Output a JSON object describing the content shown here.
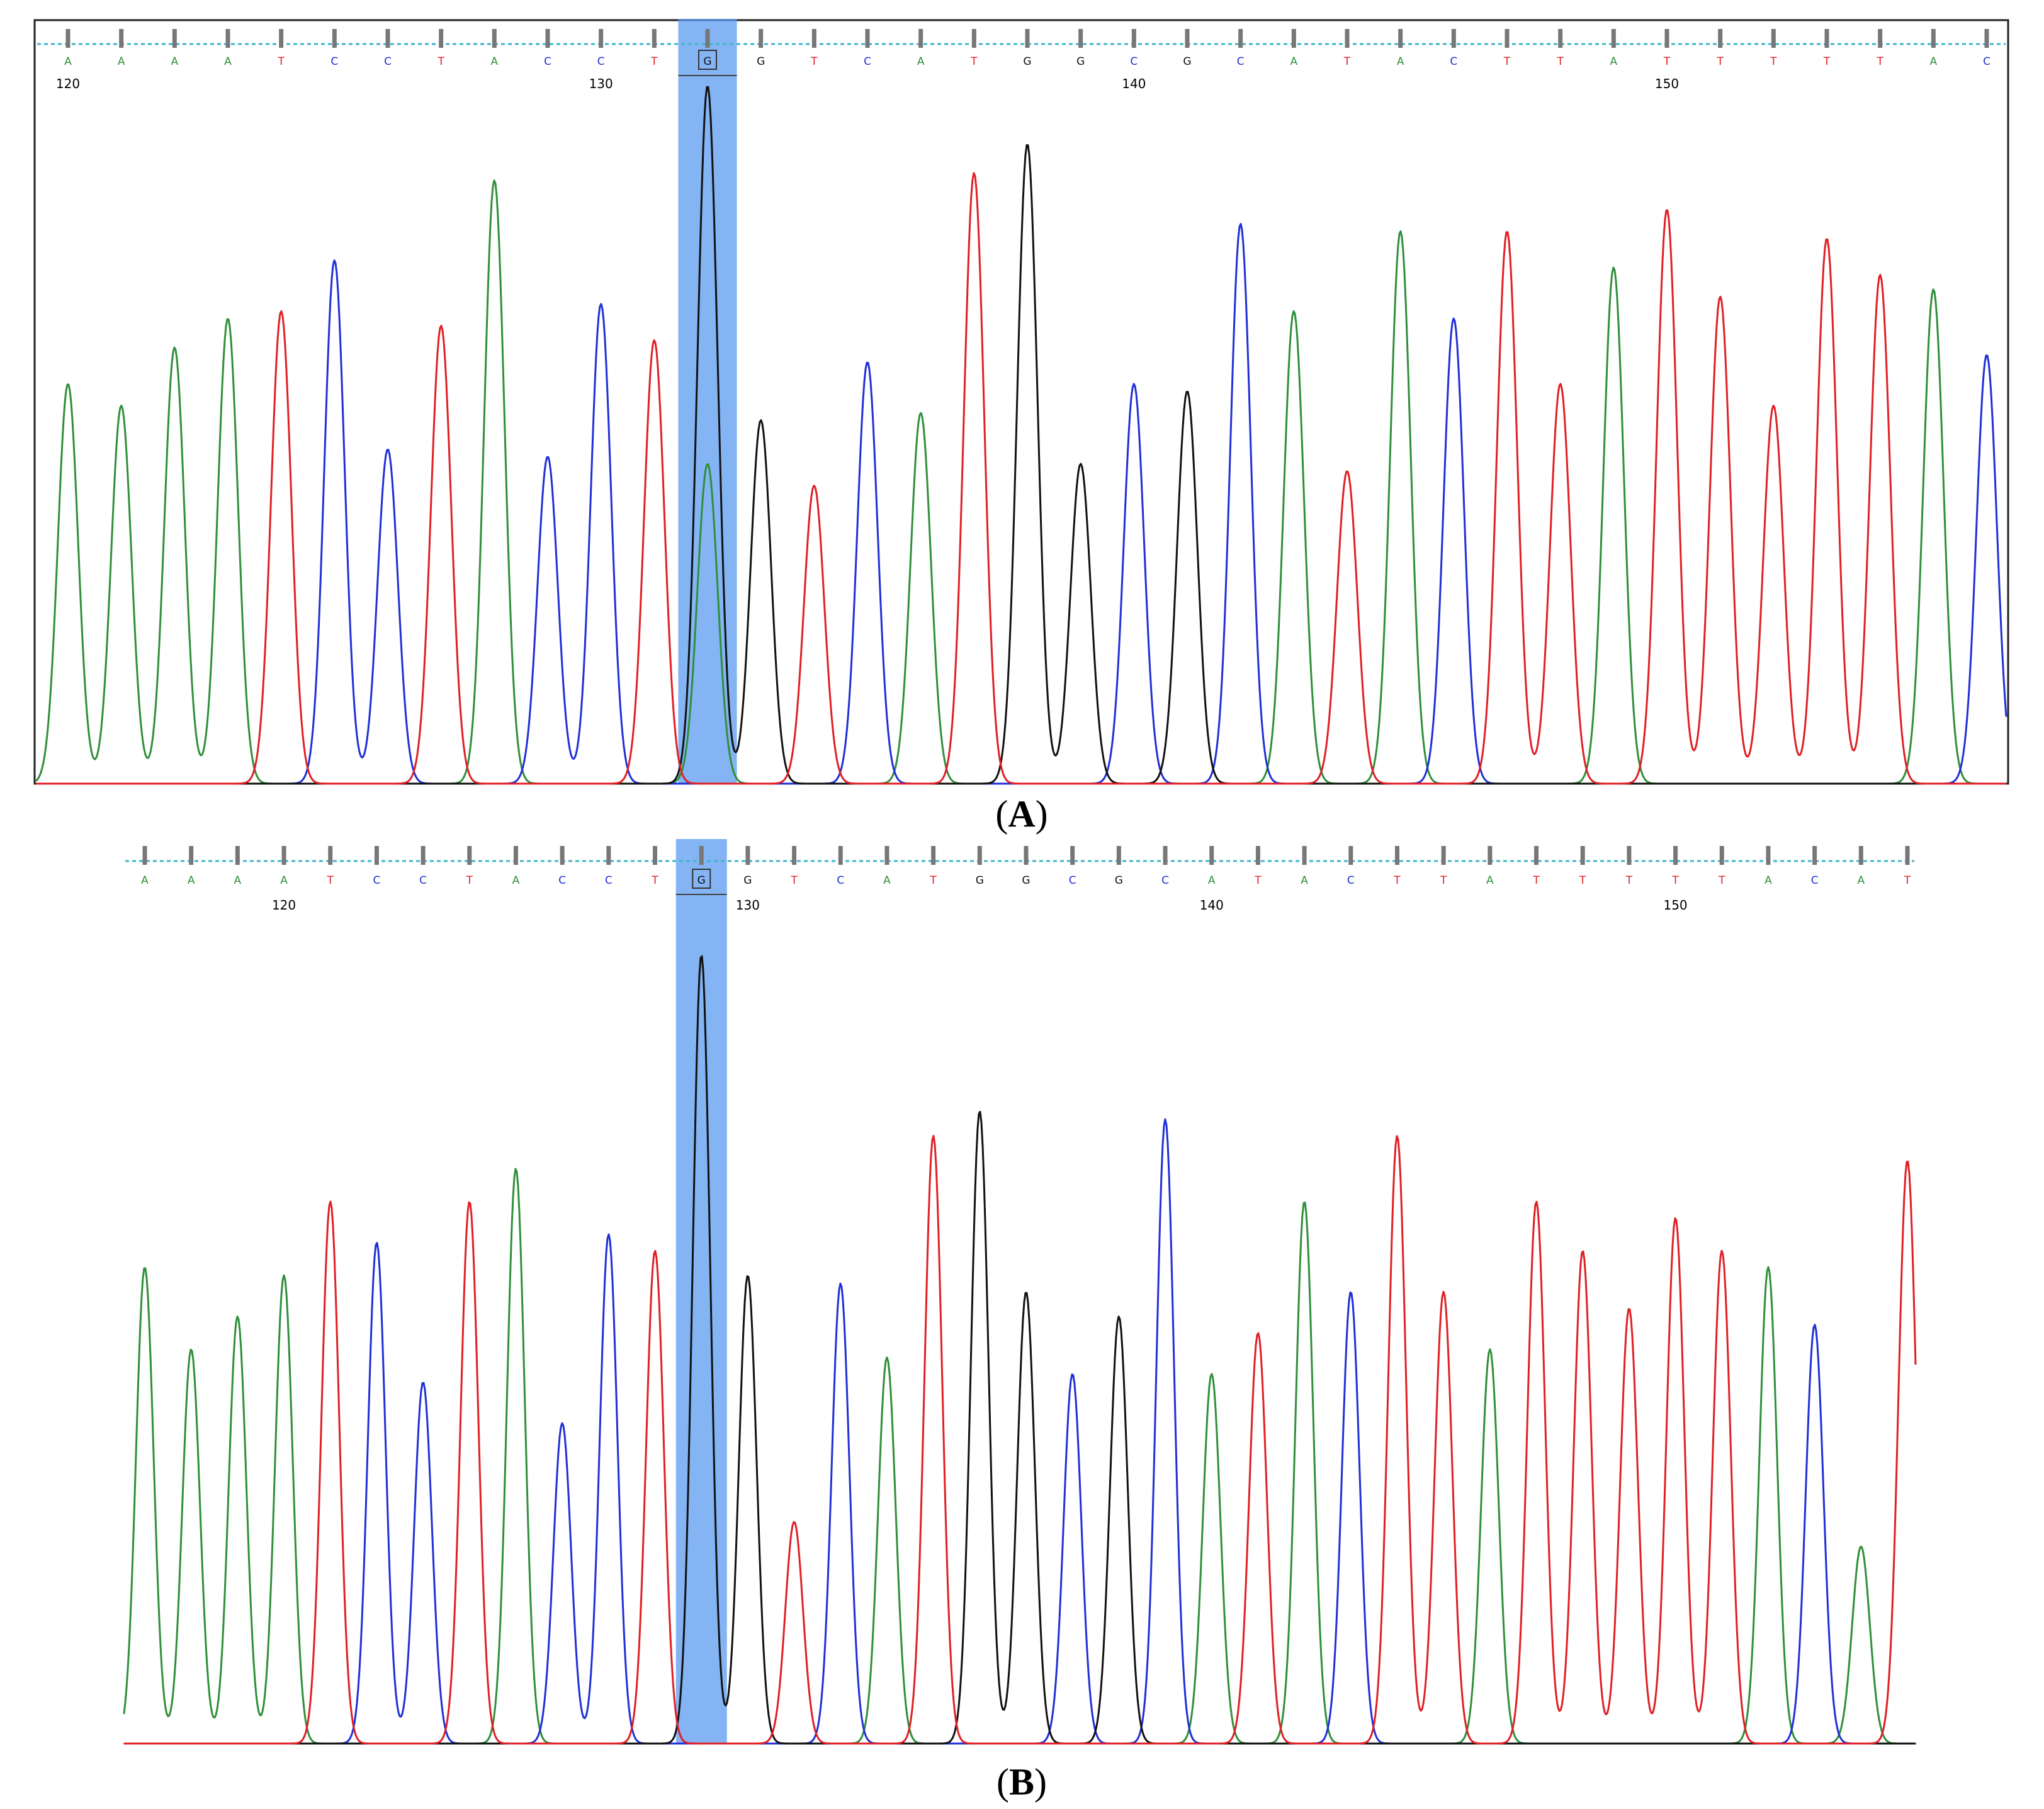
{
  "colors": {
    "A": "#2f8f3a",
    "C": "#1f2fd6",
    "G": "#111111",
    "T": "#e01f25",
    "highlight": "#5b9bf0",
    "track": "#3fb6c8"
  },
  "chart_data": [
    {
      "type": "line",
      "panel_label": "A",
      "bases": [
        "A",
        "A",
        "A",
        "A",
        "T",
        "C",
        "C",
        "T",
        "A",
        "C",
        "C",
        "T",
        "G",
        "G",
        "T",
        "C",
        "A",
        "T",
        "G",
        "G",
        "C",
        "G",
        "C",
        "A",
        "T",
        "A",
        "C",
        "T",
        "T",
        "A",
        "T",
        "T",
        "T",
        "T",
        "T",
        "A",
        "C"
      ],
      "position_ticks": [
        {
          "label": "120",
          "index": 0
        },
        {
          "label": "130",
          "index": 10
        },
        {
          "label": "140",
          "index": 20
        },
        {
          "label": "150",
          "index": 30
        }
      ],
      "highlighted_index": 12,
      "secondary_peak": {
        "index": 12,
        "base": "A",
        "height": 0.44
      },
      "peak_heights": [
        0.55,
        0.52,
        0.6,
        0.64,
        0.65,
        0.72,
        0.46,
        0.63,
        0.83,
        0.45,
        0.66,
        0.61,
        0.96,
        0.5,
        0.41,
        0.58,
        0.51,
        0.84,
        0.88,
        0.44,
        0.55,
        0.54,
        0.77,
        0.65,
        0.43,
        0.76,
        0.64,
        0.76,
        0.55,
        0.71,
        0.79,
        0.67,
        0.52,
        0.75,
        0.7,
        0.68,
        0.59
      ],
      "ylim": [
        0,
        1
      ]
    },
    {
      "type": "line",
      "panel_label": "B",
      "bases": [
        "A",
        "A",
        "A",
        "A",
        "T",
        "C",
        "C",
        "T",
        "A",
        "C",
        "C",
        "T",
        "G",
        "G",
        "T",
        "C",
        "A",
        "T",
        "G",
        "G",
        "C",
        "G",
        "C",
        "A",
        "T",
        "A",
        "C",
        "T",
        "T",
        "A",
        "T",
        "T",
        "T",
        "T",
        "T",
        "A",
        "C",
        "A",
        "T"
      ],
      "position_ticks": [
        {
          "label": "120",
          "index": 3
        },
        {
          "label": "130",
          "index": 13
        },
        {
          "label": "140",
          "index": 23
        },
        {
          "label": "150",
          "index": 33
        }
      ],
      "highlighted_index": 12,
      "secondary_peak": null,
      "peak_heights": [
        0.58,
        0.48,
        0.52,
        0.57,
        0.66,
        0.61,
        0.44,
        0.66,
        0.7,
        0.39,
        0.62,
        0.6,
        0.96,
        0.57,
        0.27,
        0.56,
        0.47,
        0.74,
        0.77,
        0.55,
        0.45,
        0.52,
        0.76,
        0.45,
        0.5,
        0.66,
        0.55,
        0.74,
        0.55,
        0.48,
        0.66,
        0.6,
        0.53,
        0.64,
        0.6,
        0.58,
        0.51,
        0.24,
        0.71
      ],
      "ylim": [
        0,
        1
      ]
    }
  ]
}
